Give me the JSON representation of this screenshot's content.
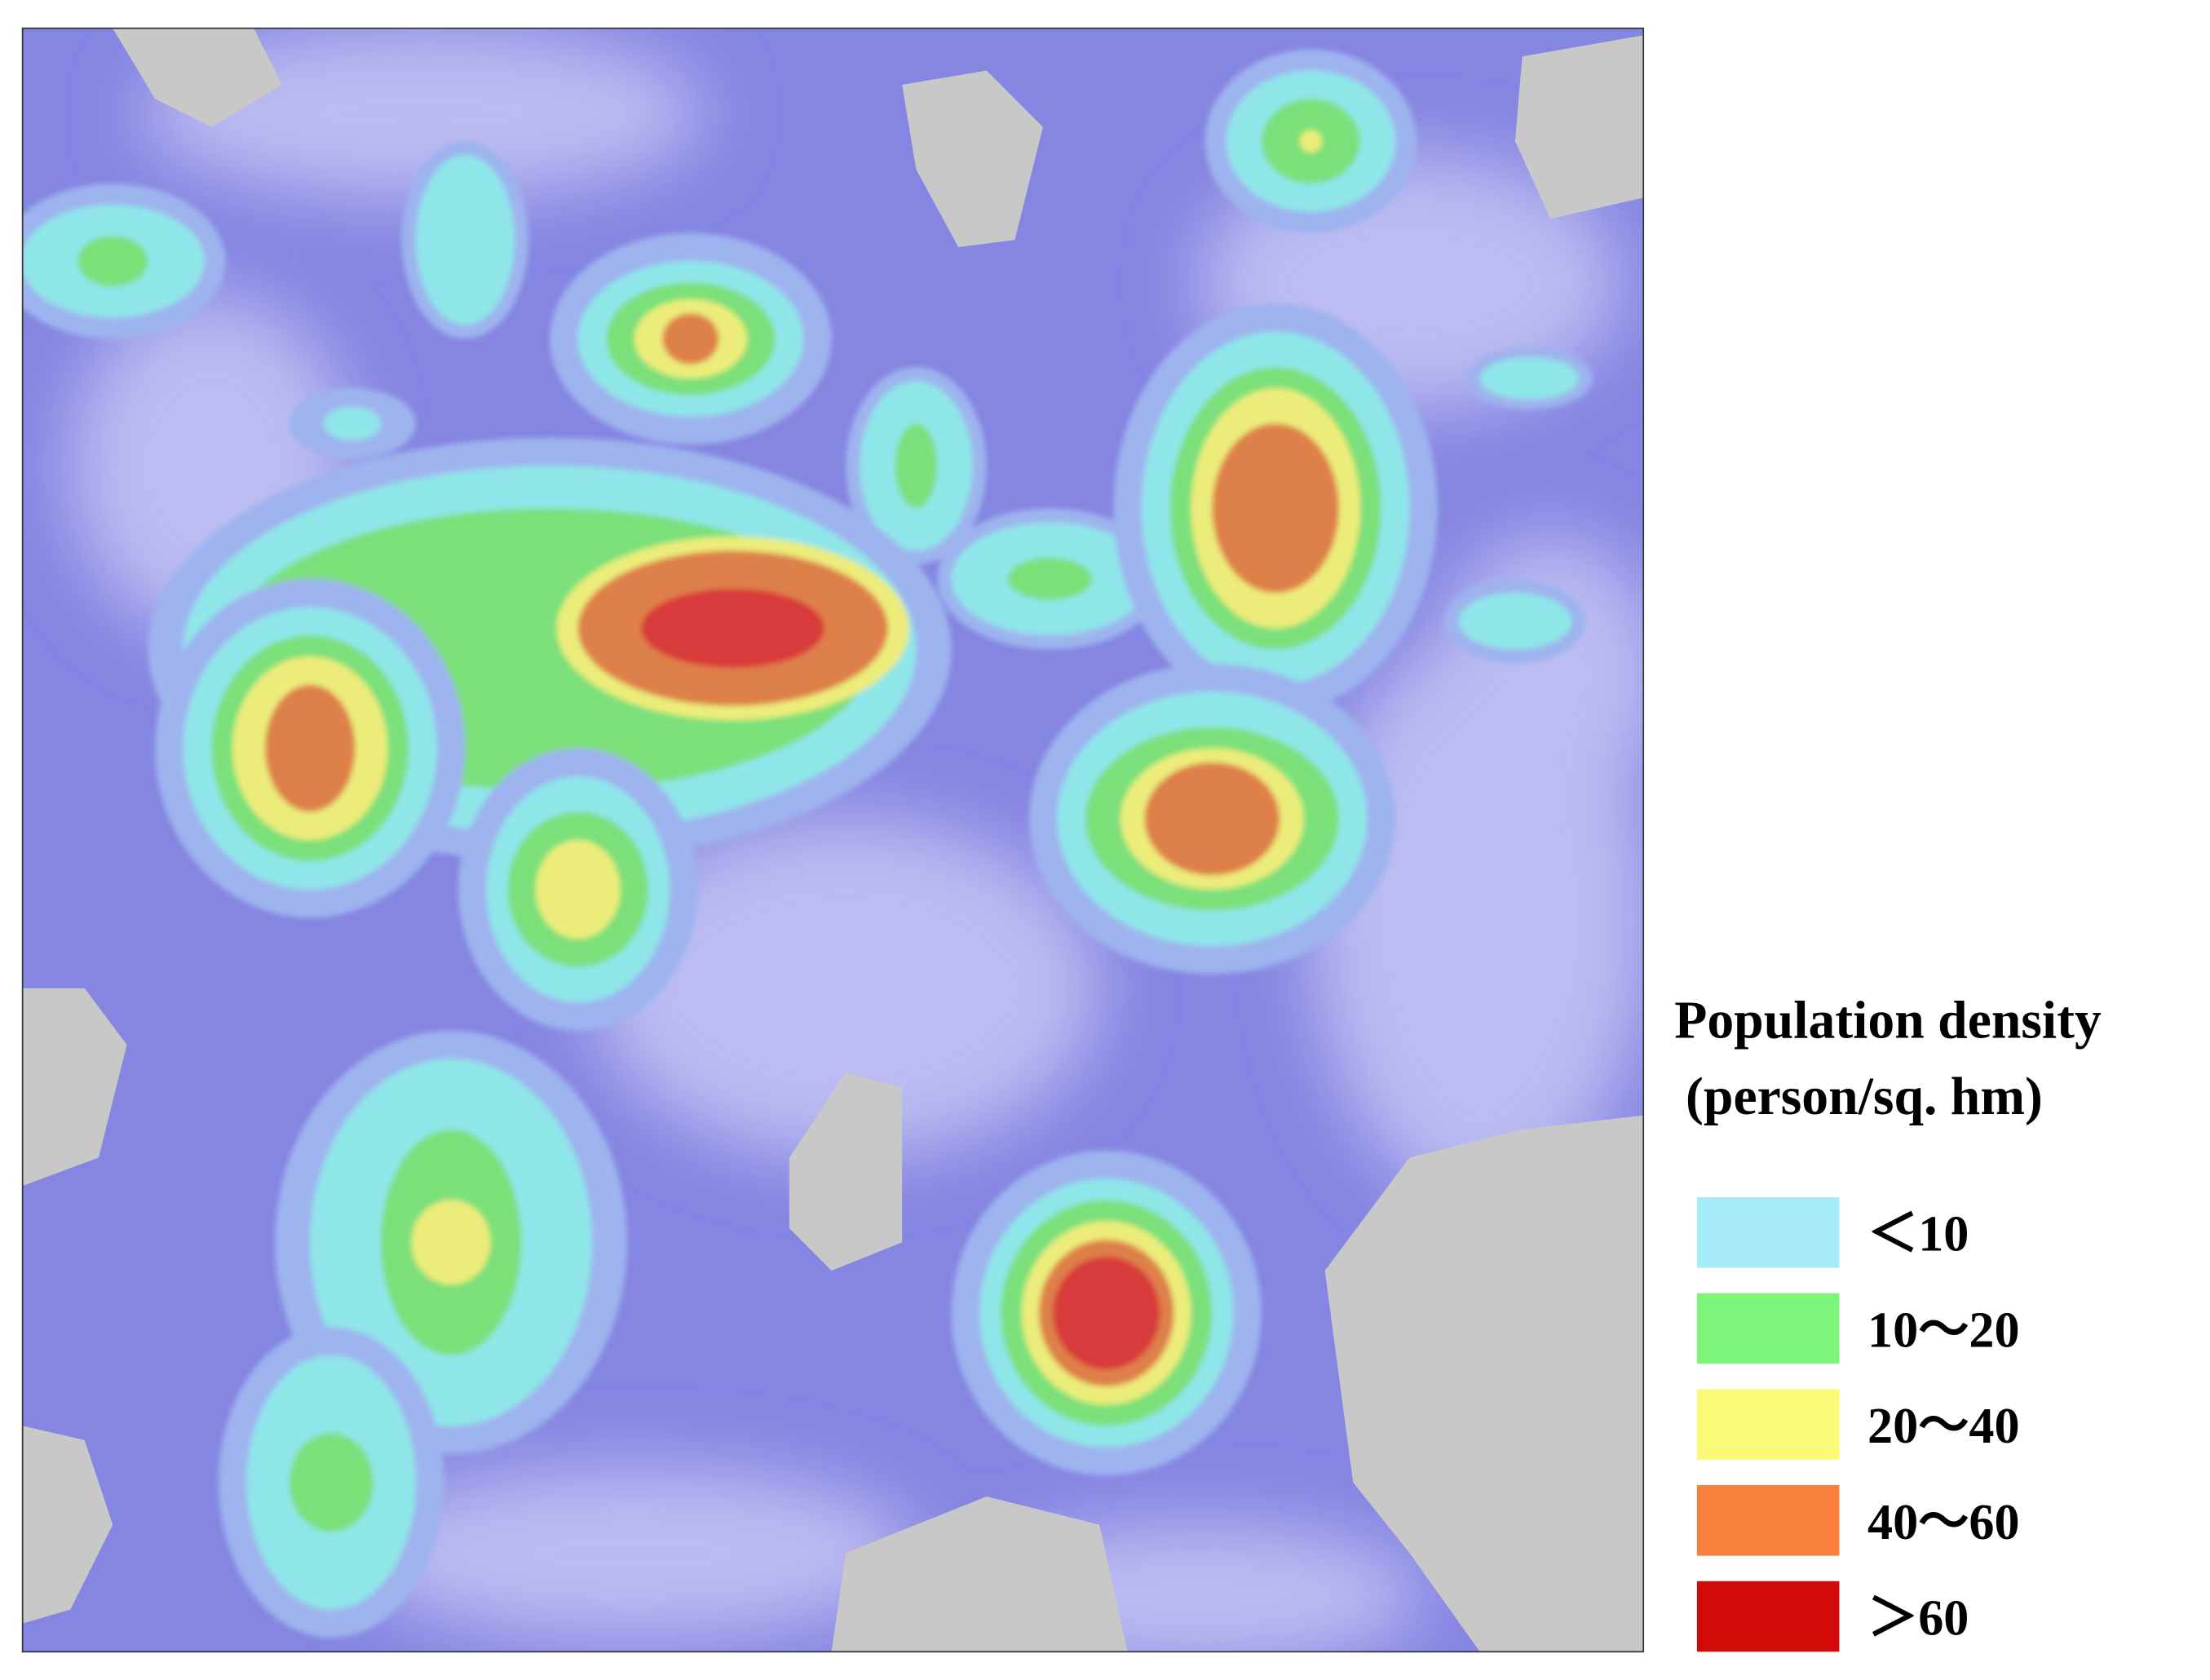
{
  "legend": {
    "title": "Population density",
    "subtitle": "(person/sq. hm)",
    "items": [
      {
        "label": "＜10",
        "color": "#a6ecf8"
      },
      {
        "label": "10～20",
        "color": "#7cf57a"
      },
      {
        "label": "20～40",
        "color": "#fafa78"
      },
      {
        "label": "40～60",
        "color": "#f97f3c"
      },
      {
        "label": "＞60",
        "color": "#d20a0a"
      }
    ]
  }
}
